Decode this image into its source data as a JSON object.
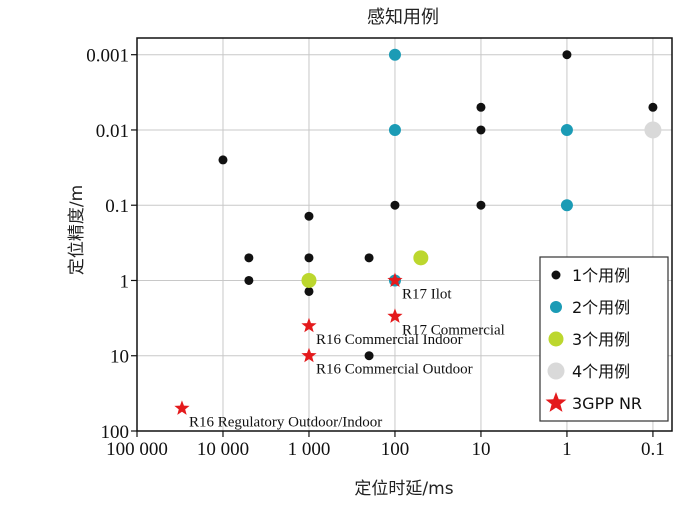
{
  "chart_data": {
    "type": "scatter",
    "title": "感知用例",
    "xlabel": "定位时延/ms",
    "ylabel": "定位精度/m",
    "x_scale": "log-reversed",
    "y_scale": "log-reversed",
    "xlim": [
      100000,
      0.06
    ],
    "ylim": [
      100,
      0.0006
    ],
    "x_ticks": [
      {
        "value": 100000,
        "label": "100 000"
      },
      {
        "value": 10000,
        "label": "10 000"
      },
      {
        "value": 1000,
        "label": "1 000"
      },
      {
        "value": 100,
        "label": "100"
      },
      {
        "value": 10,
        "label": "10"
      },
      {
        "value": 1,
        "label": "1"
      },
      {
        "value": 0.1,
        "label": "0.1"
      }
    ],
    "y_ticks": [
      {
        "value": 0.001,
        "label": "0.001"
      },
      {
        "value": 0.01,
        "label": "0.01"
      },
      {
        "value": 0.1,
        "label": "0.1"
      },
      {
        "value": 1,
        "label": "1"
      },
      {
        "value": 10,
        "label": "10"
      },
      {
        "value": 100,
        "label": "100"
      }
    ],
    "series": [
      {
        "name": "1个用例",
        "color": "#111111",
        "marker": "circle",
        "size": 4.5,
        "points": [
          [
            1,
            0.001
          ],
          [
            10,
            0.005
          ],
          [
            0.1,
            0.005
          ],
          [
            10,
            0.01
          ],
          [
            100,
            0.1
          ],
          [
            10,
            0.1
          ],
          [
            10000,
            0.025
          ],
          [
            1000,
            0.14
          ],
          [
            5000,
            0.5
          ],
          [
            1000,
            0.5
          ],
          [
            200,
            0.5
          ],
          [
            5000,
            1
          ],
          [
            1000,
            1.4
          ],
          [
            200,
            10
          ]
        ]
      },
      {
        "name": "2个用例",
        "color": "#1b9bb5",
        "marker": "circle",
        "size": 6,
        "points": [
          [
            100,
            0.001
          ],
          [
            100,
            0.01
          ],
          [
            1,
            0.01
          ],
          [
            1,
            0.1
          ],
          [
            100,
            1
          ]
        ]
      },
      {
        "name": "3个用例",
        "color": "#bcd72e",
        "marker": "circle",
        "size": 7.5,
        "points": [
          [
            1000,
            1
          ],
          [
            50,
            0.5
          ]
        ]
      },
      {
        "name": "4个用例",
        "color": "#d9d9d9",
        "marker": "circle",
        "size": 8.5,
        "points": [
          [
            0.1,
            0.01
          ]
        ]
      },
      {
        "name": "3GPP NR",
        "color": "#e41a1c",
        "marker": "star",
        "size": 8,
        "points": [
          {
            "x": 100,
            "y": 1,
            "label": "R17 Ilot"
          },
          {
            "x": 100,
            "y": 3,
            "label": "R17 Commercial"
          },
          {
            "x": 1000,
            "y": 4,
            "label": "R16 Commercial Indoor"
          },
          {
            "x": 1000,
            "y": 10,
            "label": "R16 Commercial Outdoor"
          },
          {
            "x": 30000,
            "y": 50,
            "label": "R16 Regulatory Outdoor/Indoor"
          }
        ]
      }
    ],
    "legend": {
      "placement": "bottom-right",
      "entries": [
        "1个用例",
        "2个用例",
        "3个用例",
        "4个用例",
        "3GPP NR"
      ]
    },
    "grid": true
  }
}
